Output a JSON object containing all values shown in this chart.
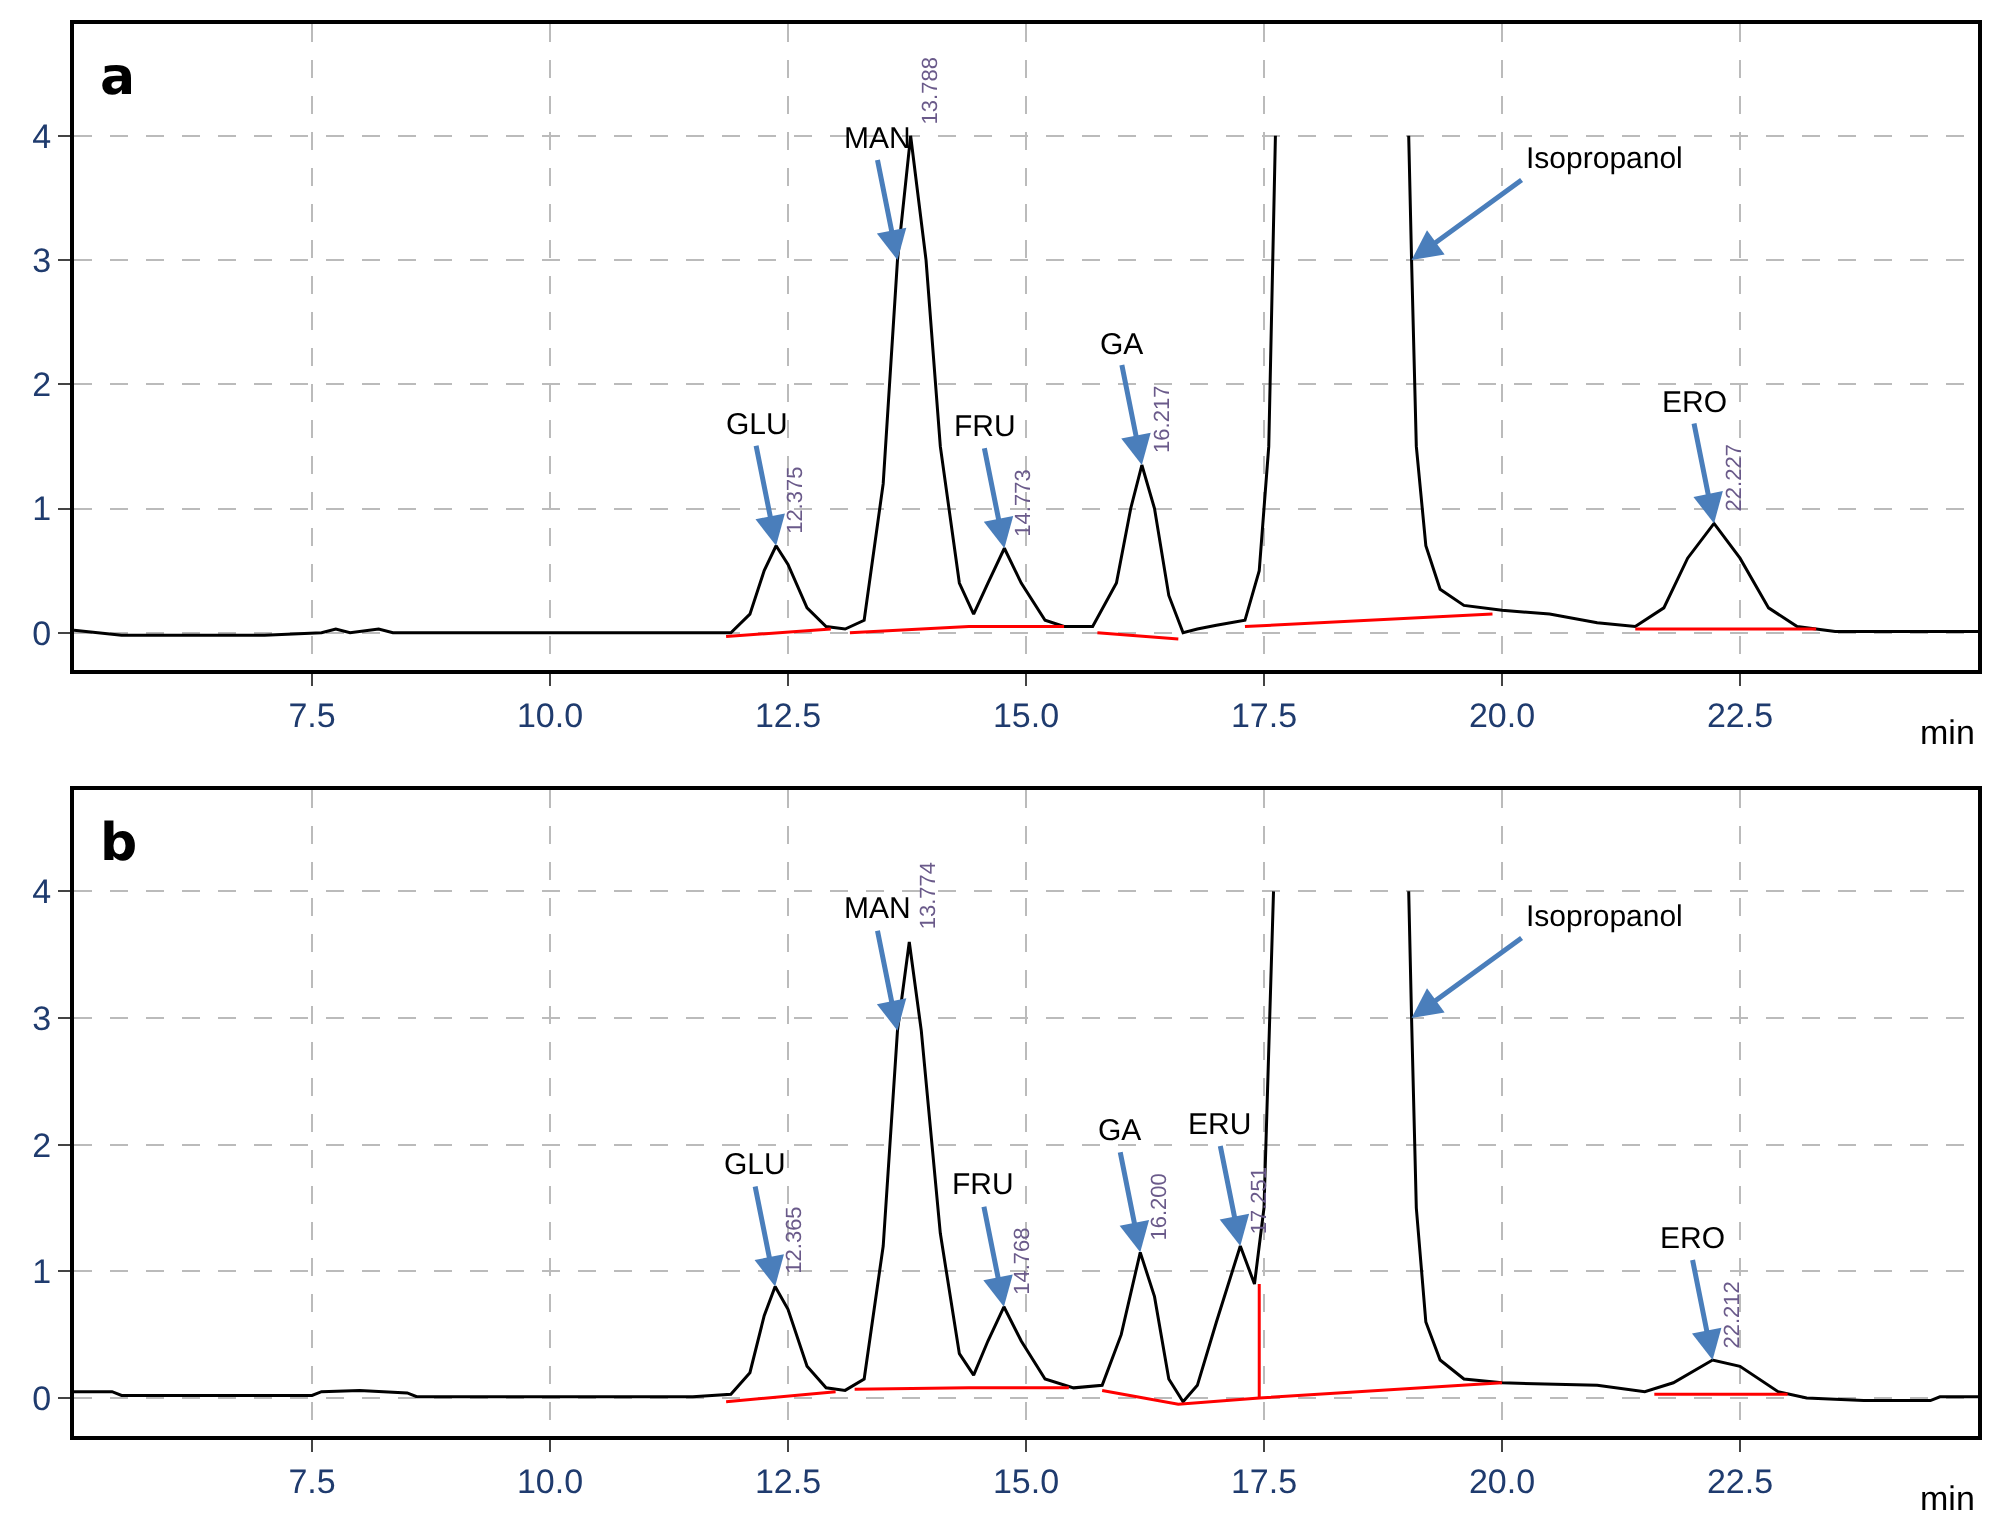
{
  "chart_data": [
    {
      "type": "line",
      "title": "a",
      "xlabel": "min",
      "xlim": [
        5,
        25
      ],
      "ylim": [
        -0.3,
        4.9
      ],
      "xticks": [
        7.5,
        {
          "value": 10,
          "label": "10.0"
        },
        12.5,
        {
          "value": 15,
          "label": "15.0"
        },
        17.5,
        {
          "value": 20,
          "label": "20.0"
        },
        22.5
      ],
      "yticks": [
        0,
        1,
        2,
        3,
        4
      ],
      "grid": true,
      "marker": "none",
      "series": [
        {
          "color": "#000000",
          "x": [
            5.0,
            5.5,
            7.0,
            7.6,
            7.75,
            7.9,
            8.2,
            8.35,
            8.5,
            11.9,
            12.1,
            12.25,
            12.375,
            12.5,
            12.7,
            12.9,
            13.1,
            13.3,
            13.5,
            13.65,
            13.788,
            13.95,
            14.1,
            14.3,
            14.45,
            14.6,
            14.773,
            14.95,
            15.2,
            15.4,
            15.7,
            15.95,
            16.1,
            16.217,
            16.35,
            16.5,
            16.65,
            16.8,
            17.0,
            17.3,
            17.45,
            17.55,
            17.62,
            18.3,
            19.02,
            19.05,
            19.1,
            19.2,
            19.35,
            19.6,
            20.0,
            20.5,
            21.0,
            21.4,
            21.7,
            21.95,
            22.227,
            22.5,
            22.8,
            23.1,
            23.5,
            25.0
          ],
          "values": [
            0.02,
            -0.02,
            -0.02,
            0.0,
            0.03,
            0.0,
            0.03,
            0.0,
            0.0,
            0.0,
            0.15,
            0.5,
            0.7,
            0.55,
            0.2,
            0.05,
            0.03,
            0.1,
            1.2,
            3.0,
            4.0,
            3.0,
            1.5,
            0.4,
            0.15,
            0.4,
            0.68,
            0.4,
            0.1,
            0.05,
            0.05,
            0.4,
            1.0,
            1.35,
            1.0,
            0.3,
            0.0,
            0.03,
            0.06,
            0.1,
            0.5,
            1.5,
            4.0,
            null,
            4.0,
            3.0,
            1.5,
            0.7,
            0.35,
            0.22,
            0.18,
            0.15,
            0.08,
            0.05,
            0.2,
            0.6,
            0.88,
            0.6,
            0.2,
            0.05,
            0.01,
            0.01
          ]
        },
        {
          "color": "#ff0000",
          "x": [
            11.85,
            12.95,
            null,
            13.15,
            14.4,
            15.4,
            null,
            15.75,
            16.6,
            null,
            17.3,
            19.9,
            null,
            21.4,
            23.3
          ],
          "values": [
            -0.03,
            0.03,
            null,
            0.0,
            0.05,
            0.05,
            null,
            0.0,
            -0.05,
            null,
            0.05,
            0.15,
            null,
            0.03,
            0.03
          ]
        }
      ],
      "annotations": [
        {
          "text": "GLU",
          "x": 12.375,
          "y": 0.7
        },
        {
          "text": "12.375",
          "x": 12.375,
          "y": 0.7
        },
        {
          "text": "MAN",
          "x": 13.65,
          "y": 3.0
        },
        {
          "text": "13.788",
          "x": 13.788,
          "y": 4.0
        },
        {
          "text": "FRU",
          "x": 14.773,
          "y": 0.68
        },
        {
          "text": "14.773",
          "x": 14.773,
          "y": 0.68
        },
        {
          "text": "GA",
          "x": 16.217,
          "y": 1.35
        },
        {
          "text": "16.217",
          "x": 16.217,
          "y": 1.35
        },
        {
          "text": "ERO",
          "x": 22.227,
          "y": 0.88
        },
        {
          "text": "22.227",
          "x": 22.227,
          "y": 0.88
        },
        {
          "text": "Isopropanol",
          "x": 19.05,
          "y": 3.0
        }
      ]
    },
    {
      "type": "line",
      "title": "b",
      "xlabel": "min",
      "xlim": [
        5,
        25
      ],
      "ylim": [
        -0.3,
        4.8
      ],
      "xticks": [
        7.5,
        {
          "value": 10,
          "label": "10.0"
        },
        12.5,
        {
          "value": 15,
          "label": "15.0"
        },
        17.5,
        {
          "value": 20,
          "label": "20.0"
        },
        22.5
      ],
      "yticks": [
        0,
        1,
        2,
        3,
        4
      ],
      "grid": true,
      "marker": "none",
      "series": [
        {
          "color": "#000000",
          "x": [
            5.0,
            5.4,
            5.5,
            7.5,
            7.6,
            8.0,
            8.5,
            8.6,
            11.5,
            11.9,
            12.1,
            12.25,
            12.365,
            12.5,
            12.7,
            12.9,
            13.1,
            13.3,
            13.5,
            13.65,
            13.774,
            13.9,
            14.1,
            14.3,
            14.45,
            14.6,
            14.768,
            14.95,
            15.2,
            15.5,
            15.8,
            16.0,
            16.2,
            16.35,
            16.5,
            16.65,
            16.8,
            17.0,
            17.251,
            17.4,
            17.5,
            17.6,
            18.3,
            19.02,
            19.05,
            19.1,
            19.2,
            19.35,
            19.6,
            20.0,
            21.0,
            21.5,
            21.8,
            22.212,
            22.5,
            22.9,
            23.2,
            23.8,
            24.5,
            24.6,
            25.0
          ],
          "values": [
            0.05,
            0.05,
            0.02,
            0.02,
            0.05,
            0.06,
            0.04,
            0.01,
            0.01,
            0.03,
            0.2,
            0.65,
            0.88,
            0.7,
            0.25,
            0.08,
            0.06,
            0.15,
            1.2,
            2.9,
            3.6,
            2.9,
            1.3,
            0.35,
            0.18,
            0.45,
            0.72,
            0.45,
            0.15,
            0.08,
            0.1,
            0.5,
            1.15,
            0.8,
            0.15,
            -0.03,
            0.1,
            0.6,
            1.2,
            0.9,
            1.5,
            4.0,
            null,
            4.0,
            3.0,
            1.5,
            0.6,
            0.3,
            0.15,
            0.12,
            0.1,
            0.05,
            0.12,
            0.3,
            0.25,
            0.05,
            0.0,
            -0.02,
            -0.02,
            0.01,
            0.01
          ]
        },
        {
          "color": "#ff0000",
          "x": [
            11.85,
            13.0,
            null,
            13.2,
            14.4,
            15.45,
            null,
            15.8,
            16.6,
            17.45,
            20.0,
            null,
            17.45,
            17.45,
            null,
            21.6,
            23.0
          ],
          "values": [
            -0.03,
            0.05,
            null,
            0.07,
            0.08,
            0.08,
            null,
            0.06,
            -0.05,
            0.0,
            0.12,
            null,
            0.0,
            0.9,
            null,
            0.03,
            0.03
          ]
        }
      ],
      "annotations": [
        {
          "text": "GLU",
          "x": 12.365,
          "y": 0.88
        },
        {
          "text": "12.365",
          "x": 12.365,
          "y": 0.88
        },
        {
          "text": "MAN",
          "x": 13.65,
          "y": 2.9
        },
        {
          "text": "13.774",
          "x": 13.774,
          "y": 3.6
        },
        {
          "text": "FRU",
          "x": 14.768,
          "y": 0.72
        },
        {
          "text": "14.768",
          "x": 14.768,
          "y": 0.72
        },
        {
          "text": "GA",
          "x": 16.2,
          "y": 1.15
        },
        {
          "text": "16.200",
          "x": 16.2,
          "y": 1.15
        },
        {
          "text": "ERU",
          "x": 17.251,
          "y": 1.2
        },
        {
          "text": "17.251",
          "x": 17.251,
          "y": 1.2
        },
        {
          "text": "ERO",
          "x": 22.212,
          "y": 0.3
        },
        {
          "text": "22.212",
          "x": 22.212,
          "y": 0.3
        },
        {
          "text": "Isopropanol",
          "x": 19.05,
          "y": 3.0
        }
      ]
    }
  ]
}
